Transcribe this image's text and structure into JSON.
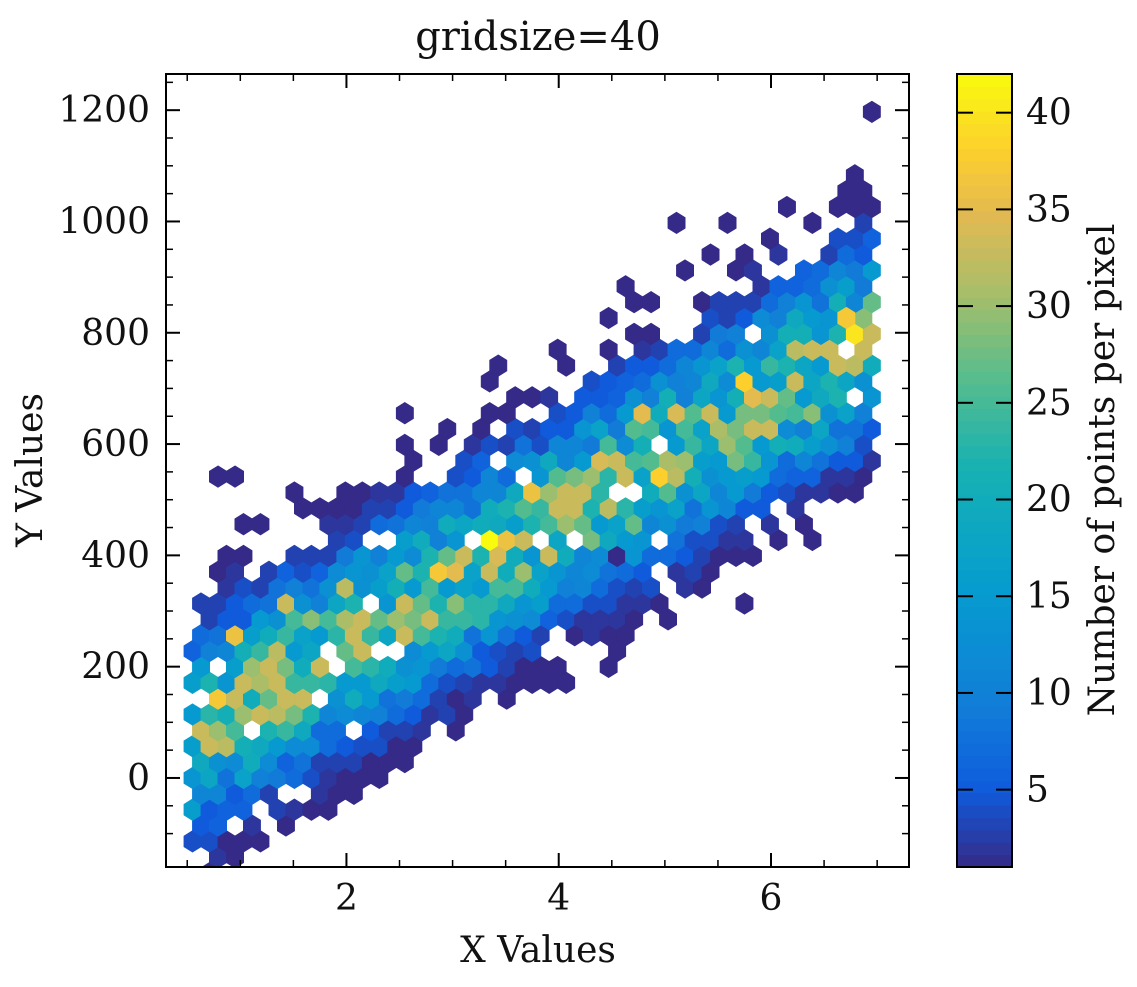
{
  "chart_data": {
    "type": "hexbin",
    "title": "gridsize=40",
    "xlabel": "X Values",
    "ylabel": "Y Values",
    "xlim": [
      0.3,
      7.3
    ],
    "ylim": [
      -160,
      1265
    ],
    "x_ticks": [
      2,
      4,
      6
    ],
    "y_ticks": [
      0,
      200,
      400,
      600,
      800,
      1000,
      1200
    ],
    "x_tick_labels": [
      "2",
      "4",
      "6"
    ],
    "y_tick_labels": [
      "0",
      "200",
      "400",
      "600",
      "800",
      "1000",
      "1200"
    ],
    "grid": false,
    "colormap": "parula",
    "colorbar": {
      "label": "Number of points per pixel",
      "min": 1,
      "max": 42,
      "ticks": [
        5,
        10,
        15,
        20,
        25,
        30,
        35,
        40
      ],
      "tick_labels": [
        "5",
        "10",
        "15",
        "20",
        "25",
        "30",
        "35",
        "40"
      ]
    },
    "gridsize": 40,
    "hex_dx": 0.16,
    "hex_dy": 28.5,
    "trend": {
      "slope": 111,
      "intercept": 18,
      "spread": 260
    },
    "outliers": [
      {
        "x": 7.0,
        "y": 1198,
        "count": 1
      },
      {
        "x": 5.8,
        "y": 325,
        "count": 1
      },
      {
        "x": 4.65,
        "y": 268,
        "count": 1
      },
      {
        "x": 4.1,
        "y": 185,
        "count": 1
      },
      {
        "x": 3.0,
        "y": 130,
        "count": 1
      },
      {
        "x": 2.15,
        "y": -15,
        "count": 1
      },
      {
        "x": 0.85,
        "y": 550,
        "count": 1
      },
      {
        "x": 1.0,
        "y": 550,
        "count": 1
      },
      {
        "x": 5.15,
        "y": 1000,
        "count": 1
      },
      {
        "x": 5.6,
        "y": 1000,
        "count": 1
      },
      {
        "x": 4.65,
        "y": 890,
        "count": 1
      },
      {
        "x": 3.5,
        "y": 750,
        "count": 1
      },
      {
        "x": 2.55,
        "y": 665,
        "count": 1
      },
      {
        "x": 3.3,
        "y": 720,
        "count": 1
      },
      {
        "x": 1.45,
        "y": 520,
        "count": 1
      },
      {
        "x": 0.8,
        "y": -110,
        "count": 1
      },
      {
        "x": 1.05,
        "y": -100,
        "count": 1
      },
      {
        "x": 2.6,
        "y": 15,
        "count": 1
      },
      {
        "x": 4.55,
        "y": 400,
        "count": 1
      },
      {
        "x": 6.1,
        "y": 1030,
        "count": 1
      },
      {
        "x": 6.8,
        "y": 1060,
        "count": 1
      }
    ],
    "hotspots": [
      {
        "x": 3.4,
        "y": 437,
        "count": 42
      },
      {
        "x": 3.55,
        "y": 437,
        "count": 36
      },
      {
        "x": 3.7,
        "y": 500,
        "count": 36
      },
      {
        "x": 2.9,
        "y": 380,
        "count": 37
      },
      {
        "x": 3.05,
        "y": 380,
        "count": 35
      },
      {
        "x": 0.85,
        "y": 130,
        "count": 37
      },
      {
        "x": 0.95,
        "y": 270,
        "count": 36
      },
      {
        "x": 4.9,
        "y": 555,
        "count": 38
      },
      {
        "x": 4.85,
        "y": 655,
        "count": 35
      },
      {
        "x": 5.1,
        "y": 660,
        "count": 34
      },
      {
        "x": 5.7,
        "y": 720,
        "count": 38
      },
      {
        "x": 5.8,
        "y": 690,
        "count": 35
      },
      {
        "x": 6.75,
        "y": 830,
        "count": 37
      },
      {
        "x": 6.8,
        "y": 805,
        "count": 40
      },
      {
        "x": 4.35,
        "y": 560,
        "count": 34
      },
      {
        "x": 1.5,
        "y": 300,
        "count": 33
      },
      {
        "x": 2.0,
        "y": 330,
        "count": 32
      },
      {
        "x": 3.45,
        "y": 410,
        "count": 34
      }
    ]
  }
}
